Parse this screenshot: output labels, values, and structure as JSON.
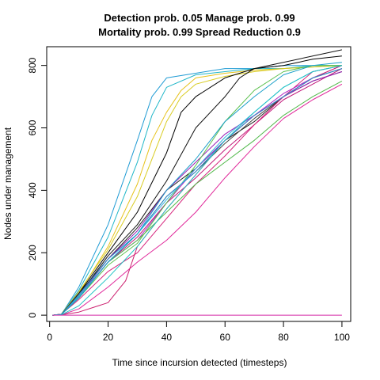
{
  "chart_data": {
    "type": "line",
    "title_line1": "Detection prob. 0.05 Manage prob. 0.99",
    "title_line2": "Mortality prob. 0.99 Spread Reduction 0.9",
    "xlabel": "Time since incursion detected (timesteps)",
    "ylabel": "Nodes under management",
    "xlim": [
      -1,
      103
    ],
    "ylim": [
      -20,
      860
    ],
    "xticks": [
      0,
      20,
      40,
      60,
      80,
      100
    ],
    "yticks": [
      0,
      200,
      400,
      600,
      800
    ],
    "grid": false,
    "legend": "none",
    "series": [
      {
        "color": "#1f9bd4",
        "x": [
          1,
          4,
          10,
          20,
          30,
          35,
          40,
          50,
          60,
          70,
          80,
          90,
          100
        ],
        "y": [
          0,
          2,
          90,
          290,
          560,
          700,
          760,
          775,
          790,
          790,
          800,
          800,
          800
        ]
      },
      {
        "color": "#1fb6c8",
        "x": [
          1,
          4,
          10,
          20,
          30,
          35,
          40,
          50,
          60,
          70,
          80,
          90,
          100
        ],
        "y": [
          0,
          3,
          80,
          250,
          490,
          640,
          730,
          770,
          780,
          790,
          790,
          800,
          800
        ]
      },
      {
        "color": "#e6c21a",
        "x": [
          1,
          4,
          10,
          20,
          30,
          35,
          40,
          45,
          50,
          60,
          70,
          80,
          90,
          100
        ],
        "y": [
          0,
          2,
          70,
          220,
          420,
          560,
          650,
          720,
          760,
          775,
          785,
          790,
          795,
          800
        ]
      },
      {
        "color": "#d8cc22",
        "x": [
          1,
          4,
          10,
          20,
          30,
          40,
          45,
          50,
          60,
          70,
          80,
          90,
          100
        ],
        "y": [
          0,
          3,
          75,
          210,
          380,
          620,
          700,
          740,
          765,
          780,
          790,
          795,
          800
        ]
      },
      {
        "color": "#000000",
        "x": [
          1,
          4,
          10,
          20,
          30,
          40,
          45,
          50,
          60,
          70,
          80,
          90,
          100
        ],
        "y": [
          0,
          2,
          70,
          200,
          330,
          520,
          650,
          700,
          760,
          790,
          800,
          820,
          830
        ]
      },
      {
        "color": "#111111",
        "x": [
          1,
          4,
          10,
          20,
          30,
          40,
          50,
          60,
          65,
          70,
          80,
          90,
          100
        ],
        "y": [
          0,
          3,
          65,
          190,
          290,
          430,
          600,
          700,
          760,
          790,
          810,
          830,
          850
        ]
      },
      {
        "color": "#222222",
        "x": [
          1,
          4,
          10,
          20,
          30,
          40,
          50,
          60,
          70,
          80,
          90,
          100
        ],
        "y": [
          0,
          2,
          70,
          180,
          280,
          400,
          470,
          560,
          620,
          700,
          760,
          790
        ]
      },
      {
        "color": "#444444",
        "x": [
          1,
          4,
          10,
          20,
          30,
          40,
          50,
          60,
          70,
          80,
          90,
          100
        ],
        "y": [
          0,
          2,
          60,
          170,
          260,
          380,
          460,
          550,
          630,
          700,
          750,
          780
        ]
      },
      {
        "color": "#c2187a",
        "x": [
          1,
          4,
          10,
          20,
          30,
          40,
          50,
          60,
          70,
          80,
          90,
          100
        ],
        "y": [
          0,
          2,
          60,
          170,
          250,
          360,
          440,
          530,
          610,
          690,
          740,
          790
        ]
      },
      {
        "color": "#d6247d",
        "x": [
          1,
          4,
          10,
          20,
          30,
          40,
          50,
          60,
          70,
          80,
          90,
          100
        ],
        "y": [
          0,
          3,
          50,
          140,
          200,
          310,
          420,
          510,
          610,
          700,
          780,
          800
        ]
      },
      {
        "color": "#9a1fb5",
        "x": [
          1,
          4,
          10,
          20,
          30,
          40,
          50,
          60,
          70,
          80,
          90,
          100
        ],
        "y": [
          0,
          2,
          60,
          180,
          270,
          400,
          490,
          580,
          640,
          700,
          750,
          780
        ]
      },
      {
        "color": "#b322c6",
        "x": [
          1,
          4,
          10,
          20,
          30,
          40,
          50,
          60,
          70,
          80,
          90,
          100
        ],
        "y": [
          0,
          2,
          55,
          170,
          240,
          360,
          470,
          560,
          640,
          710,
          760,
          800
        ]
      },
      {
        "color": "#e0289a",
        "x": [
          1,
          4,
          10,
          20,
          30,
          40,
          50,
          60,
          70,
          80,
          90,
          100
        ],
        "y": [
          0,
          1,
          20,
          90,
          170,
          240,
          330,
          440,
          540,
          630,
          690,
          740
        ]
      },
      {
        "color": "#cc1f6e",
        "x": [
          1,
          4,
          10,
          20,
          26,
          30,
          40,
          50,
          60,
          70,
          80,
          90,
          100
        ],
        "y": [
          0,
          1,
          10,
          40,
          110,
          220,
          340,
          450,
          560,
          640,
          700,
          760,
          800
        ]
      },
      {
        "color": "#4fb848",
        "x": [
          1,
          4,
          10,
          20,
          30,
          40,
          50,
          60,
          70,
          80,
          90,
          100
        ],
        "y": [
          0,
          2,
          60,
          170,
          240,
          330,
          420,
          490,
          560,
          640,
          700,
          750
        ]
      },
      {
        "color": "#5cc04e",
        "x": [
          1,
          4,
          10,
          20,
          30,
          40,
          50,
          60,
          70,
          80,
          90,
          100
        ],
        "y": [
          0,
          2,
          55,
          160,
          230,
          360,
          480,
          620,
          720,
          780,
          800,
          800
        ]
      },
      {
        "color": "#2a8fd0",
        "x": [
          1,
          4,
          10,
          20,
          30,
          40,
          50,
          60,
          70,
          80,
          90,
          100
        ],
        "y": [
          0,
          2,
          65,
          180,
          260,
          380,
          460,
          560,
          640,
          700,
          760,
          790
        ]
      },
      {
        "color": "#33b5e0",
        "x": [
          1,
          4,
          10,
          20,
          30,
          40,
          50,
          60,
          70,
          80,
          90,
          100
        ],
        "y": [
          0,
          2,
          60,
          170,
          260,
          370,
          470,
          570,
          650,
          730,
          780,
          800
        ]
      },
      {
        "color": "#22c4c4",
        "x": [
          1,
          4,
          10,
          20,
          30,
          40,
          50,
          60,
          70,
          80,
          90,
          100
        ],
        "y": [
          0,
          1,
          30,
          120,
          220,
          340,
          450,
          560,
          650,
          730,
          780,
          800
        ]
      },
      {
        "color": "#1a9fc9",
        "x": [
          1,
          4,
          10,
          20,
          30,
          40,
          50,
          60,
          70,
          80,
          90,
          100
        ],
        "y": [
          0,
          2,
          55,
          170,
          260,
          400,
          500,
          620,
          700,
          770,
          800,
          810
        ]
      },
      {
        "color": "#d42aa8",
        "x": [
          1,
          100
        ],
        "y": [
          0,
          0
        ]
      }
    ]
  }
}
